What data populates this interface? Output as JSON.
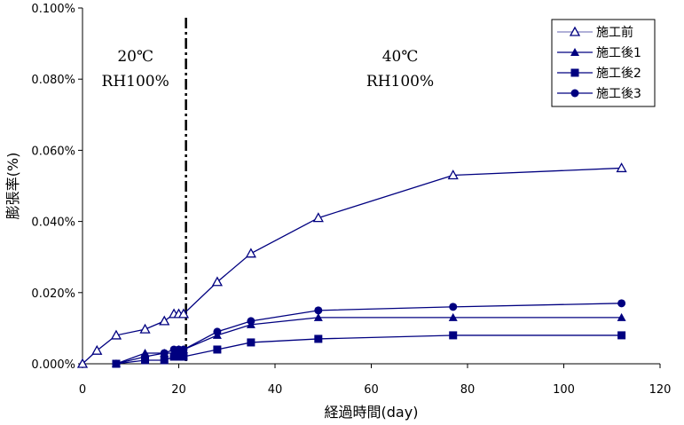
{
  "chart_data": {
    "type": "line",
    "xlabel": "経過時間(day)",
    "ylabel": "膨張率(%)",
    "xlim": [
      0,
      120
    ],
    "ylim": [
      0,
      0.1
    ],
    "xticks": [
      0,
      20,
      40,
      60,
      80,
      100,
      120
    ],
    "yticks": [
      "0.000%",
      "0.020%",
      "0.040%",
      "0.060%",
      "0.080%",
      "0.100%"
    ],
    "grid": false,
    "legend": "top-right",
    "divider_x": 21.5,
    "annotations": [
      {
        "lines": [
          "20℃",
          "RH100%"
        ],
        "x": 11,
        "y": 0.085
      },
      {
        "lines": [
          "40℃",
          "RH100%"
        ],
        "x": 66,
        "y": 0.085
      }
    ],
    "series": [
      {
        "name": "施工前",
        "marker": "triangle-open",
        "x": [
          0,
          3,
          7,
          13,
          17,
          19,
          20,
          21,
          28,
          35,
          49,
          77,
          112
        ],
        "values": [
          0,
          0.0037,
          0.008,
          0.0097,
          0.012,
          0.014,
          0.014,
          0.014,
          0.023,
          0.031,
          0.041,
          0.053,
          0.055
        ]
      },
      {
        "name": "施工後1",
        "marker": "triangle",
        "x": [
          7,
          13,
          17,
          19,
          20,
          21,
          28,
          35,
          49,
          77,
          112
        ],
        "values": [
          0,
          0.003,
          0.003,
          0.003,
          0.004,
          0.004,
          0.008,
          0.011,
          0.013,
          0.013,
          0.013
        ]
      },
      {
        "name": "施工後2",
        "marker": "square",
        "x": [
          7,
          13,
          17,
          19,
          20,
          21,
          28,
          35,
          49,
          77,
          112
        ],
        "values": [
          0,
          0.001,
          0.001,
          0.002,
          0.002,
          0.002,
          0.004,
          0.006,
          0.007,
          0.008,
          0.008
        ]
      },
      {
        "name": "施工後3",
        "marker": "circle",
        "x": [
          7,
          13,
          17,
          19,
          20,
          21,
          28,
          35,
          49,
          77,
          112
        ],
        "values": [
          0,
          0.002,
          0.003,
          0.004,
          0.004,
          0.004,
          0.009,
          0.012,
          0.015,
          0.016,
          0.017
        ]
      }
    ],
    "colors": {
      "line": "#000080",
      "legend_line_open": "#8080c0"
    }
  }
}
